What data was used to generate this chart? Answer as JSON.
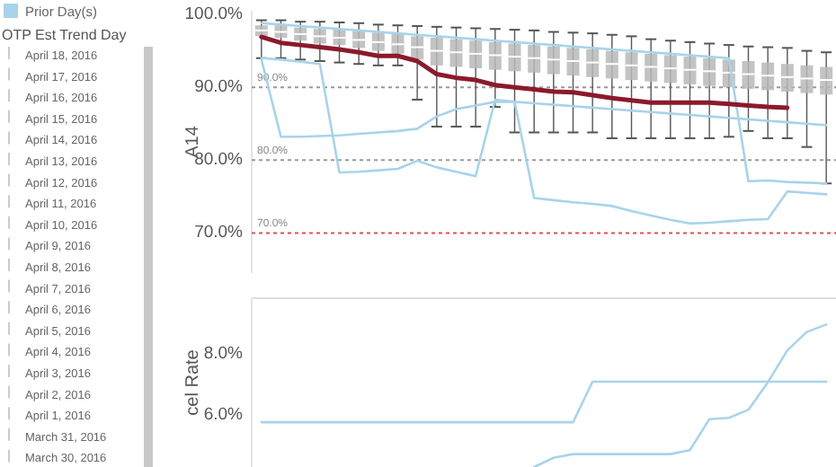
{
  "chart_data": [
    {
      "type": "line",
      "ylabel": "A14",
      "categories": [
        null,
        null,
        null,
        null,
        null,
        null,
        null,
        null,
        null,
        null,
        null,
        null,
        null,
        null,
        null,
        null,
        null,
        null,
        null,
        null,
        null,
        null,
        null,
        null,
        null,
        null,
        null,
        null,
        null,
        null
      ],
      "ylim": [
        64.5,
        100.5
      ],
      "yticks": [
        {
          "value": 70,
          "label": "70.0%"
        },
        {
          "value": 80,
          "label": "80.0%"
        },
        {
          "value": 90,
          "label": "90.0%"
        },
        {
          "value": 100,
          "label": "100.0%"
        }
      ],
      "tick_labels": "y",
      "legend": "top left",
      "line_style": "solid",
      "marker": "none",
      "ref_lines": [
        {
          "axis": "y",
          "value": 90,
          "label": "90.0%",
          "color": "#999999",
          "line_style": "dotted"
        },
        {
          "axis": "y",
          "value": 80,
          "label": "80.0%",
          "color": "#999999",
          "line_style": "dotted"
        },
        {
          "axis": "y",
          "value": 70,
          "label": "70.0%",
          "color": "#d9534f",
          "line_style": "dotted"
        }
      ],
      "series": [
        {
          "type": "box",
          "color": "#b8b8b8",
          "boxes": [
            {
              "low": 94.0,
              "q1": 97.0,
              "median": 97.8,
              "q3": 98.5,
              "high": 99.2
            },
            {
              "low": 94.0,
              "q1": 96.8,
              "median": 97.6,
              "q3": 98.5,
              "high": 99.2
            },
            {
              "low": 93.8,
              "q1": 96.4,
              "median": 97.3,
              "q3": 98.2,
              "high": 99.0
            },
            {
              "low": 93.6,
              "q1": 96.0,
              "median": 97.0,
              "q3": 98.0,
              "high": 99.0
            },
            {
              "low": 93.4,
              "q1": 95.8,
              "median": 96.8,
              "q3": 97.9,
              "high": 98.9
            },
            {
              "low": 93.2,
              "q1": 95.4,
              "median": 96.5,
              "q3": 97.7,
              "high": 98.8
            },
            {
              "low": 93.0,
              "q1": 95.0,
              "median": 96.2,
              "q3": 97.5,
              "high": 98.6
            },
            {
              "low": 93.0,
              "q1": 94.6,
              "median": 95.9,
              "q3": 97.3,
              "high": 98.5
            },
            {
              "low": 88.3,
              "q1": 93.8,
              "median": 95.5,
              "q3": 97.0,
              "high": 98.4
            },
            {
              "low": 84.6,
              "q1": 93.0,
              "median": 95.0,
              "q3": 96.8,
              "high": 98.3
            },
            {
              "low": 84.6,
              "q1": 92.8,
              "median": 94.8,
              "q3": 96.6,
              "high": 98.2
            },
            {
              "low": 84.6,
              "q1": 92.6,
              "median": 94.6,
              "q3": 96.4,
              "high": 98.1
            },
            {
              "low": 87.3,
              "q1": 92.4,
              "median": 94.4,
              "q3": 96.2,
              "high": 98.0
            },
            {
              "low": 83.8,
              "q1": 92.2,
              "median": 94.2,
              "q3": 96.0,
              "high": 97.9
            },
            {
              "low": 83.8,
              "q1": 92.0,
              "median": 94.0,
              "q3": 95.8,
              "high": 97.8
            },
            {
              "low": 83.8,
              "q1": 91.8,
              "median": 93.8,
              "q3": 95.6,
              "high": 97.6
            },
            {
              "low": 83.8,
              "q1": 91.6,
              "median": 93.6,
              "q3": 95.4,
              "high": 97.5
            },
            {
              "low": 83.8,
              "q1": 91.4,
              "median": 93.4,
              "q3": 95.2,
              "high": 97.4
            },
            {
              "low": 83.0,
              "q1": 91.2,
              "median": 93.2,
              "q3": 95.0,
              "high": 97.2
            },
            {
              "low": 83.0,
              "q1": 91.0,
              "median": 93.0,
              "q3": 94.8,
              "high": 97.0
            },
            {
              "low": 83.0,
              "q1": 90.8,
              "median": 92.8,
              "q3": 94.6,
              "high": 96.6
            },
            {
              "low": 83.0,
              "q1": 90.6,
              "median": 92.6,
              "q3": 94.4,
              "high": 96.4
            },
            {
              "low": 83.0,
              "q1": 90.4,
              "median": 92.4,
              "q3": 94.2,
              "high": 96.2
            },
            {
              "low": 83.0,
              "q1": 90.2,
              "median": 92.2,
              "q3": 94.0,
              "high": 96.0
            },
            {
              "low": 83.2,
              "q1": 90.0,
              "median": 92.0,
              "q3": 93.8,
              "high": 95.8
            },
            {
              "low": 84.0,
              "q1": 89.8,
              "median": 91.8,
              "q3": 93.6,
              "high": 95.6
            },
            {
              "low": 83.0,
              "q1": 89.6,
              "median": 91.6,
              "q3": 93.4,
              "high": 95.5
            },
            {
              "low": 83.0,
              "q1": 89.4,
              "median": 91.4,
              "q3": 93.2,
              "high": 95.4
            },
            {
              "low": 81.8,
              "q1": 89.2,
              "median": 91.2,
              "q3": 93.0,
              "high": 95.0
            },
            {
              "low": 76.8,
              "q1": 89.0,
              "median": 91.0,
              "q3": 92.8,
              "high": 94.8
            }
          ]
        },
        {
          "name": "Prior Day(s)",
          "color": "#a9d3ea",
          "values": [
            93.8,
            83.2,
            83.2,
            83.3,
            83.4,
            83.6,
            83.8,
            84.0,
            84.3,
            86.0,
            87.0,
            87.5,
            88.0,
            88.0,
            87.8,
            87.6,
            87.4,
            87.2,
            87.0,
            86.8,
            86.6,
            86.4,
            86.2,
            86.0,
            85.8,
            85.6,
            85.4,
            85.2,
            85.0,
            84.8
          ]
        },
        {
          "color": "#a9d3ea",
          "values": [
            94.0,
            93.8,
            93.5,
            93.2,
            78.3,
            78.4,
            78.6,
            78.8,
            79.9,
            79.0,
            78.4,
            77.8,
            88.3,
            88.0,
            74.8,
            74.5,
            74.2,
            74.0,
            73.7,
            73.0,
            72.4,
            71.8,
            71.3,
            71.4,
            71.6,
            71.8,
            71.9,
            75.7,
            75.5,
            75.3
          ]
        },
        {
          "color": "#a9d3ea",
          "values": [
            98.8,
            98.6,
            98.4,
            98.2,
            98.0,
            97.8,
            97.6,
            97.4,
            97.2,
            97.0,
            96.8,
            96.6,
            96.4,
            96.2,
            96.0,
            95.8,
            95.6,
            95.4,
            95.2,
            95.0,
            94.8,
            94.6,
            94.4,
            94.2,
            94.0,
            77.1,
            77.2,
            77.0,
            76.9,
            76.8
          ]
        },
        {
          "color": "#8b1a2b",
          "values": [
            96.9,
            96.1,
            95.8,
            95.5,
            95.2,
            94.8,
            94.3,
            94.3,
            93.6,
            91.8,
            91.3,
            91.0,
            90.3,
            90.0,
            89.7,
            89.4,
            89.3,
            88.9,
            88.5,
            88.2,
            87.9,
            87.9,
            87.9,
            87.9,
            87.7,
            87.5,
            87.3,
            87.2,
            null,
            null
          ]
        }
      ]
    },
    {
      "type": "line",
      "ylabel": "cel Rate",
      "categories": [
        null,
        null,
        null,
        null,
        null,
        null,
        null,
        null,
        null,
        null,
        null,
        null,
        null,
        null,
        null,
        null,
        null,
        null,
        null,
        null,
        null,
        null,
        null,
        null,
        null,
        null,
        null,
        null,
        null,
        null
      ],
      "ylim": [
        4.3,
        9.8
      ],
      "yticks": [
        {
          "value": 6,
          "label": "6.0%"
        },
        {
          "value": 8,
          "label": "8.0%"
        }
      ],
      "tick_labels": "y",
      "series": [
        {
          "color": "#a9d3ea",
          "values": [
            5.76,
            5.76,
            5.76,
            5.76,
            5.76,
            5.76,
            5.76,
            5.76,
            5.76,
            5.76,
            5.76,
            5.76,
            5.76,
            5.76,
            5.76,
            5.76,
            5.76,
            7.08,
            7.08,
            7.08,
            7.08,
            7.08,
            7.08,
            7.08,
            7.08,
            7.08,
            7.08,
            7.08,
            7.08,
            7.08
          ]
        },
        {
          "color": "#a9d3ea",
          "values": [
            null,
            null,
            null,
            null,
            null,
            null,
            null,
            null,
            null,
            null,
            null,
            null,
            null,
            null,
            4.3,
            4.6,
            4.72,
            4.72,
            4.72,
            4.72,
            4.72,
            4.72,
            4.85,
            5.86,
            5.9,
            6.16,
            7.06,
            8.1,
            8.7,
            8.94
          ]
        }
      ]
    },
    {
      "type": "other",
      "title": "OTP Est Trend Day",
      "annotations": [
        "April 18, 2016",
        "April 17, 2016",
        "April 16, 2016",
        "April 15, 2016",
        "April 14, 2016",
        "April 13, 2016",
        "April 12, 2016",
        "April 11, 2016",
        "April 10, 2016",
        "April 9, 2016",
        "April 8, 2016",
        "April 7, 2016",
        "April 6, 2016",
        "April 5, 2016",
        "April 4, 2016",
        "April 3, 2016",
        "April 2, 2016",
        "April 1, 2016",
        "March 31, 2016",
        "March 30, 2016"
      ]
    }
  ]
}
